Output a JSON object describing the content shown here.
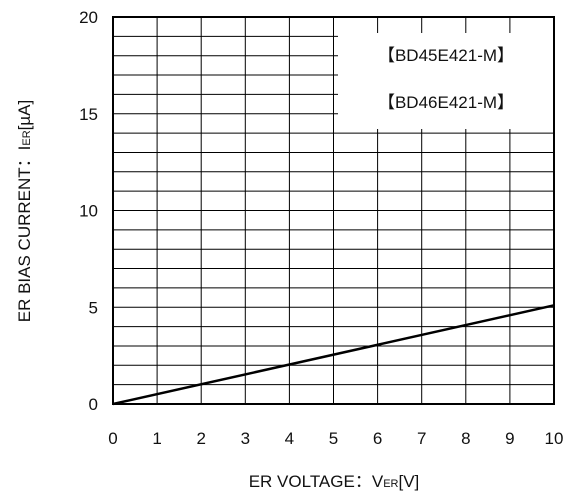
{
  "chart_data": {
    "type": "line",
    "title": "",
    "xlabel": {
      "prefix": "ER VOLTAGE：V",
      "subscript": "ER",
      "unit": "[V]"
    },
    "ylabel": {
      "prefix": "ER BIAS CURRENT：I",
      "subscript": "ER",
      "unit": "[µA]"
    },
    "xlim": [
      0,
      10
    ],
    "ylim": [
      0,
      20
    ],
    "x_ticks": [
      "0",
      "1",
      "2",
      "3",
      "4",
      "5",
      "6",
      "7",
      "8",
      "9",
      "10"
    ],
    "y_ticks": [
      "0",
      "5",
      "10",
      "15",
      "20"
    ],
    "grid": true,
    "legend_placement": "top-right",
    "legend": [
      "【BD45E421-M】",
      "【BD46E421-M】"
    ],
    "series": [
      {
        "x": [
          0,
          10
        ],
        "y": [
          0,
          5.1
        ],
        "color": "#000000"
      }
    ]
  }
}
